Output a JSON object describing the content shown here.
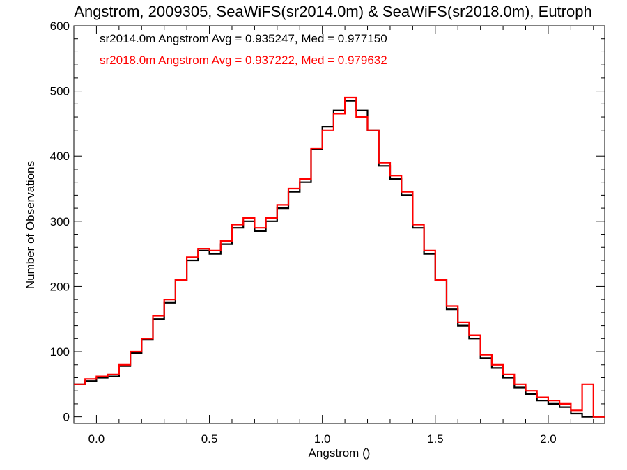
{
  "chart_data": {
    "type": "line",
    "step": true,
    "title": "Angstrom, 2009305, SeaWiFS(sr2014.0m) & SeaWiFS(sr2018.0m), Eutroph",
    "xlabel": "Angstrom ()",
    "ylabel": "Number of Observations",
    "xlim": [
      -0.1,
      2.25
    ],
    "ylim": [
      -10,
      600
    ],
    "xticks": [
      0.0,
      0.5,
      1.0,
      1.5,
      2.0
    ],
    "xtick_labels": [
      "0.0",
      "0.5",
      "1.0",
      "1.5",
      "2.0"
    ],
    "yticks": [
      0,
      100,
      200,
      300,
      400,
      500,
      600
    ],
    "ytick_labels": [
      "0",
      "100",
      "200",
      "300",
      "400",
      "500",
      "600"
    ],
    "annotations": [
      {
        "text": "sr2014.0m Angstrom Avg = 0.935247, Med = 0.977150",
        "color": "#000000"
      },
      {
        "text": "sr2018.0m Angstrom Avg = 0.937222, Med = 0.979632",
        "color": "#ff0000"
      }
    ],
    "series": [
      {
        "color": "#000000",
        "x": [
          -0.1,
          -0.05,
          0.0,
          0.05,
          0.1,
          0.15,
          0.2,
          0.25,
          0.3,
          0.35,
          0.4,
          0.45,
          0.5,
          0.55,
          0.6,
          0.65,
          0.7,
          0.75,
          0.8,
          0.85,
          0.9,
          0.95,
          1.0,
          1.05,
          1.1,
          1.15,
          1.2,
          1.25,
          1.3,
          1.35,
          1.4,
          1.45,
          1.5,
          1.55,
          1.6,
          1.65,
          1.7,
          1.75,
          1.8,
          1.85,
          1.9,
          1.95,
          2.0,
          2.05,
          2.1,
          2.15,
          2.2,
          2.25
        ],
        "y": [
          50,
          55,
          60,
          62,
          78,
          98,
          118,
          150,
          175,
          210,
          240,
          255,
          250,
          265,
          290,
          300,
          285,
          300,
          320,
          345,
          360,
          410,
          445,
          470,
          485,
          470,
          440,
          385,
          365,
          340,
          290,
          250,
          210,
          165,
          140,
          120,
          90,
          75,
          60,
          45,
          35,
          25,
          20,
          15,
          5,
          0,
          0,
          0
        ]
      },
      {
        "color": "#ff0000",
        "x": [
          -0.1,
          -0.05,
          0.0,
          0.05,
          0.1,
          0.15,
          0.2,
          0.25,
          0.3,
          0.35,
          0.4,
          0.45,
          0.5,
          0.55,
          0.6,
          0.65,
          0.7,
          0.75,
          0.8,
          0.85,
          0.9,
          0.95,
          1.0,
          1.05,
          1.1,
          1.15,
          1.2,
          1.25,
          1.3,
          1.35,
          1.4,
          1.45,
          1.5,
          1.55,
          1.6,
          1.65,
          1.7,
          1.75,
          1.8,
          1.85,
          1.9,
          1.95,
          2.0,
          2.05,
          2.1,
          2.15,
          2.2,
          2.25
        ],
        "y": [
          50,
          58,
          62,
          65,
          80,
          100,
          120,
          155,
          180,
          210,
          245,
          258,
          255,
          270,
          295,
          305,
          290,
          305,
          325,
          350,
          365,
          412,
          440,
          465,
          490,
          460,
          440,
          390,
          370,
          345,
          295,
          255,
          210,
          170,
          145,
          125,
          95,
          80,
          65,
          50,
          40,
          30,
          25,
          20,
          10,
          50,
          0,
          0
        ]
      }
    ]
  }
}
